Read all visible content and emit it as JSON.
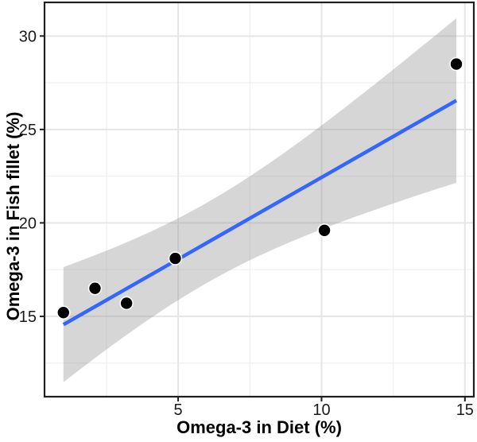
{
  "chart_data": {
    "type": "scatter",
    "title": "",
    "xlabel": "Omega-3 in Diet (%)",
    "ylabel": "Omega-3 in Fish fillet (%)",
    "x": [
      1.0,
      2.1,
      3.2,
      4.9,
      10.1,
      14.7
    ],
    "y": [
      15.2,
      16.5,
      15.7,
      18.1,
      19.6,
      28.5
    ],
    "xlim": [
      0.34,
      15.31
    ],
    "ylim": [
      10.7,
      31.8
    ],
    "x_ticks": [
      5,
      10,
      15
    ],
    "x_minor_ticks": [
      2.5,
      7.5,
      12.5
    ],
    "y_ticks": [
      15,
      20,
      25,
      30
    ],
    "y_minor_ticks": [
      12.5,
      17.5,
      22.5,
      27.5
    ],
    "grid": true,
    "legend": "none",
    "smooth": {
      "method": "linear",
      "ci_level": 0.95,
      "slope": 0.88,
      "intercept": 13.7
    },
    "colors": {
      "point": "#000000",
      "point_halo": "#ffffff",
      "line": "#3366FF",
      "band": "#999999",
      "band_opacity": 0.4,
      "grid_major": "#e5e5e5",
      "grid_minor": "#f0f0f0",
      "panel_border": "#1f1f1f",
      "tick": "#1f1f1f",
      "tick_label": "#1a1a1a",
      "panel_bg": "#ffffff"
    }
  }
}
